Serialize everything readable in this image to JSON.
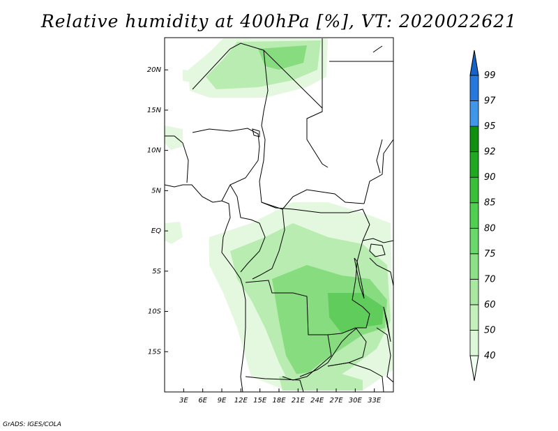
{
  "title": "Relative humidity at 400hPa [%], VT: 2020022621",
  "credit": "GrADS: IGES/COLA",
  "map": {
    "lon_range": [
      0,
      36
    ],
    "lat_range": [
      -20,
      24
    ],
    "lat_labels": [
      "20N",
      "15N",
      "10N",
      "5N",
      "EQ",
      "5S",
      "10S",
      "15S"
    ],
    "lat_values": [
      20,
      15,
      10,
      5,
      0,
      -5,
      -10,
      -15
    ],
    "lon_labels": [
      "3E",
      "6E",
      "9E",
      "12E",
      "15E",
      "18E",
      "21E",
      "24E",
      "27E",
      "30E",
      "33E"
    ],
    "lon_values": [
      3,
      6,
      9,
      12,
      15,
      18,
      21,
      24,
      27,
      30,
      33
    ]
  },
  "colorbar": {
    "levels": [
      "40",
      "50",
      "60",
      "70",
      "75",
      "80",
      "85",
      "90",
      "92",
      "95",
      "97",
      "99"
    ],
    "colors": [
      "#f0fff0",
      "#dcf8d8",
      "#c4f0bc",
      "#a8e8a0",
      "#8ce088",
      "#6ad86a",
      "#50d050",
      "#38c038",
      "#20a820",
      "#0f900f",
      "#4096e8",
      "#2678dc",
      "#1464c8"
    ]
  },
  "colors": {
    "light": "#e4f8e0",
    "medium": "#b8ecb0",
    "strong": "#88dc80",
    "deep": "#60cc5c"
  }
}
